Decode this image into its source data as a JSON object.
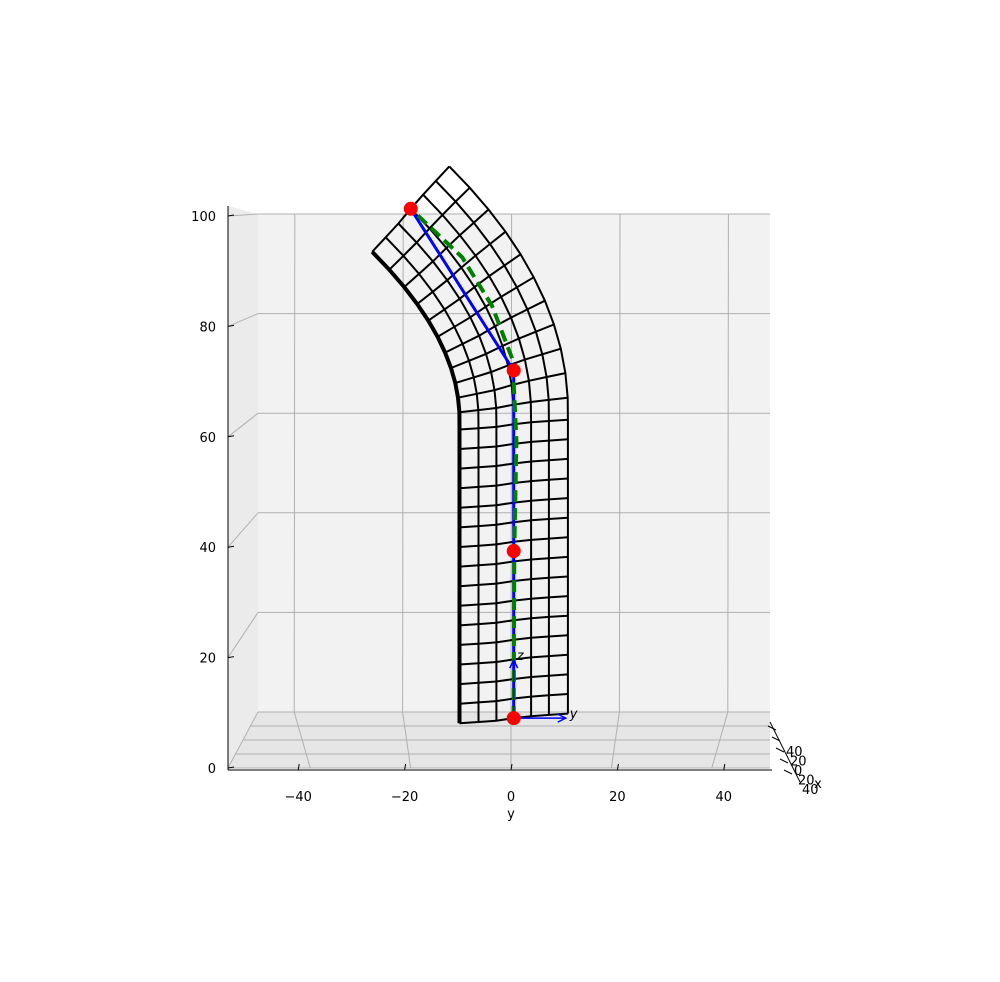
{
  "chart_data": {
    "type": "3d-wireframe",
    "title": "",
    "view": "front (y-z plane), x axis foreshortened into depth",
    "grid": true,
    "axes": {
      "y": {
        "label": "y",
        "ticks": [
          "−40",
          "−20",
          "0",
          "20",
          "40"
        ],
        "range": [
          -52,
          48
        ]
      },
      "z": {
        "label": "",
        "ticks": [
          "0",
          "20",
          "40",
          "60",
          "80",
          "100"
        ],
        "range": [
          0,
          102
        ]
      },
      "x": {
        "label": "x",
        "ticks": [
          "40",
          "20",
          "0",
          "20",
          "40"
        ]
      }
    },
    "colors": {
      "mesh": "#000000",
      "centerline": "#0000ff",
      "reference": "#008000",
      "markers": "#ff0000",
      "grid": "#b0b0b0",
      "pane": "#f2f2f2"
    },
    "markers": [
      {
        "y": 0.5,
        "z": 3.5
      },
      {
        "y": 0.5,
        "z": 34.5
      },
      {
        "y": 0.5,
        "z": 68
      },
      {
        "y": -18.5,
        "z": 98
      }
    ],
    "centerline_blue": [
      {
        "y": 0.5,
        "z": 3.5
      },
      {
        "y": 0.5,
        "z": 34.5
      },
      {
        "y": 0.5,
        "z": 68
      },
      {
        "y": -18.5,
        "z": 98
      }
    ],
    "reference_curve_green": [
      {
        "y": 0.5,
        "z": 3.5
      },
      {
        "y": 0.6,
        "z": 34.5
      },
      {
        "y": 1.0,
        "z": 55
      },
      {
        "y": 0.3,
        "z": 70
      },
      {
        "y": -3.5,
        "z": 80
      },
      {
        "y": -9,
        "z": 89
      },
      {
        "y": -18.5,
        "z": 98
      }
    ],
    "frame_axes": {
      "y_label": "y",
      "z_label": "z"
    }
  }
}
